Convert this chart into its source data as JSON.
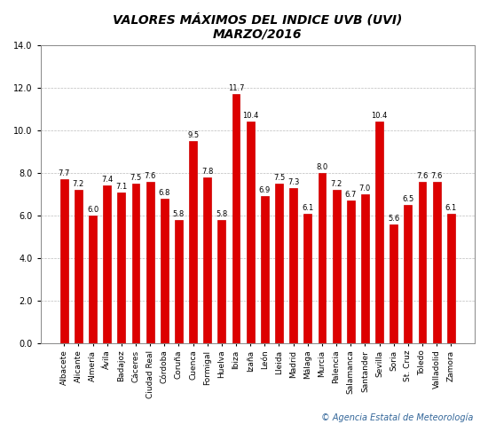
{
  "title_line1": "VALORES MÁXIMOS DEL INDICE UVB (UVI)",
  "title_line2": "MARZO/2016",
  "categories": [
    "Albacete",
    "Alicante",
    "Almería",
    "Ávila",
    "Badajoz",
    "Cáceres",
    "Ciudad Real",
    "Córdoba",
    "Coruña",
    "Cuenca",
    "Formigal",
    "Huelva",
    "Ibiza",
    "Izaña",
    "León",
    "Lleida",
    "Madrid",
    "Málaga",
    "Murcia",
    "Palencia",
    "Salamanca",
    "Santander",
    "Sevilla",
    "Soria",
    "St. Cruz",
    "Toledo",
    "Valladolid",
    "Zamora"
  ],
  "values": [
    7.7,
    7.2,
    6.0,
    7.4,
    7.1,
    7.5,
    7.6,
    6.8,
    5.8,
    9.5,
    7.8,
    5.8,
    11.7,
    10.4,
    6.9,
    7.5,
    7.3,
    6.1,
    8.0,
    7.2,
    6.7,
    7.0,
    10.4,
    5.6,
    6.5,
    7.6,
    7.6,
    6.1
  ],
  "bar_color": "#dd0000",
  "bar_edge_color": "#cc0000",
  "ylim": [
    0.0,
    14.0
  ],
  "yticks": [
    0.0,
    2.0,
    4.0,
    6.0,
    8.0,
    10.0,
    12.0,
    14.0
  ],
  "grid_color": "#bbbbbb",
  "background_color": "#ffffff",
  "title_fontsize": 10,
  "label_fontsize": 6.5,
  "value_fontsize": 6,
  "ytick_fontsize": 7,
  "footer_text": "© Agencia Estatal de Meteorología",
  "footer_color": "#336699",
  "footer_fontsize": 7
}
